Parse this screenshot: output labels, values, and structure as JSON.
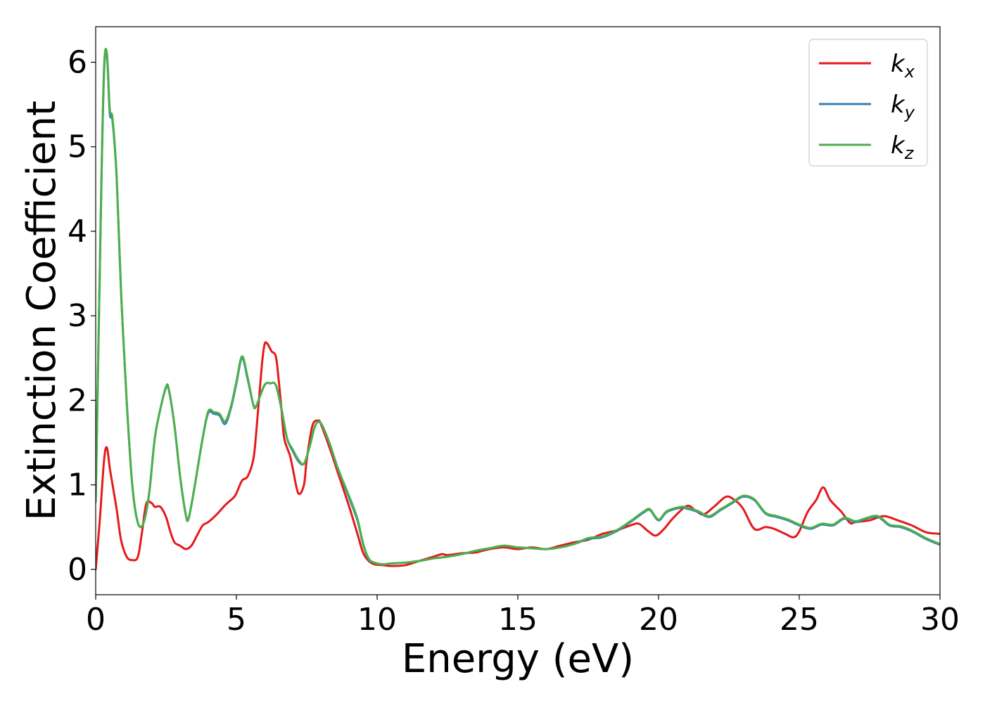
{
  "chart_data": {
    "type": "line",
    "title": "",
    "xlabel": "Energy (eV)",
    "ylabel": "Extinction Coefficient",
    "xlim": [
      0,
      30
    ],
    "ylim": [
      -0.3,
      6.42
    ],
    "xticks": [
      0,
      5,
      10,
      15,
      20,
      25,
      30
    ],
    "yticks": [
      0,
      1,
      2,
      3,
      4,
      5,
      6
    ],
    "grid": false,
    "legend": {
      "placement": "top-right",
      "entries": [
        {
          "base": "k",
          "sub": "x",
          "color": "#e41a1c"
        },
        {
          "base": "k",
          "sub": "y",
          "color": "#377eb8"
        },
        {
          "base": "k",
          "sub": "z",
          "color": "#4daf4a"
        }
      ]
    },
    "series": [
      {
        "name": "kx",
        "color": "#e41a1c",
        "x": [
          0,
          0.15,
          0.3,
          0.4,
          0.5,
          0.6,
          0.75,
          0.9,
          1.1,
          1.3,
          1.5,
          1.65,
          1.8,
          2.0,
          2.1,
          2.3,
          2.5,
          2.65,
          2.8,
          3.0,
          3.2,
          3.4,
          3.6,
          3.8,
          4.0,
          4.3,
          4.6,
          4.9,
          5.0,
          5.2,
          5.4,
          5.6,
          5.7,
          5.9,
          6.0,
          6.1,
          6.25,
          6.4,
          6.5,
          6.6,
          6.7,
          6.9,
          7.0,
          7.2,
          7.4,
          7.5,
          7.7,
          7.9,
          8.0,
          8.3,
          8.6,
          9.0,
          9.3,
          9.5,
          9.7,
          9.9,
          10.2,
          10.5,
          11.0,
          11.5,
          12.0,
          12.3,
          12.5,
          13.0,
          13.5,
          14.0,
          14.5,
          15.0,
          15.5,
          16.0,
          16.5,
          17.0,
          17.5,
          18.0,
          18.5,
          19.0,
          19.3,
          19.6,
          19.9,
          20.2,
          20.5,
          21.0,
          21.3,
          21.6,
          22.0,
          22.4,
          22.7,
          23.0,
          23.4,
          23.8,
          24.1,
          24.5,
          24.8,
          25.0,
          25.3,
          25.6,
          25.85,
          26.1,
          26.5,
          26.8,
          27.0,
          27.5,
          28.0,
          28.5,
          29.0,
          29.5,
          30.0
        ],
        "values": [
          0.0,
          0.6,
          1.3,
          1.44,
          1.2,
          1.0,
          0.7,
          0.35,
          0.15,
          0.11,
          0.15,
          0.45,
          0.78,
          0.78,
          0.74,
          0.74,
          0.62,
          0.45,
          0.32,
          0.28,
          0.24,
          0.28,
          0.4,
          0.52,
          0.56,
          0.65,
          0.76,
          0.85,
          0.9,
          1.05,
          1.1,
          1.3,
          1.6,
          2.4,
          2.66,
          2.67,
          2.58,
          2.52,
          2.25,
          1.9,
          1.55,
          1.35,
          1.2,
          0.9,
          1.0,
          1.3,
          1.7,
          1.76,
          1.72,
          1.45,
          1.15,
          0.75,
          0.42,
          0.2,
          0.1,
          0.06,
          0.05,
          0.04,
          0.05,
          0.1,
          0.15,
          0.18,
          0.17,
          0.19,
          0.2,
          0.24,
          0.26,
          0.24,
          0.26,
          0.24,
          0.28,
          0.32,
          0.35,
          0.42,
          0.46,
          0.52,
          0.54,
          0.46,
          0.4,
          0.48,
          0.6,
          0.75,
          0.7,
          0.65,
          0.75,
          0.86,
          0.82,
          0.72,
          0.48,
          0.5,
          0.48,
          0.42,
          0.38,
          0.45,
          0.68,
          0.82,
          0.97,
          0.82,
          0.68,
          0.55,
          0.56,
          0.58,
          0.63,
          0.58,
          0.52,
          0.44,
          0.42
        ]
      },
      {
        "name": "ky",
        "color": "#377eb8",
        "x": [
          0,
          0.2,
          0.3,
          0.4,
          0.5,
          0.6,
          0.75,
          0.9,
          1.1,
          1.3,
          1.5,
          1.7,
          1.9,
          2.1,
          2.3,
          2.5,
          2.6,
          2.8,
          3.0,
          3.2,
          3.3,
          3.5,
          3.8,
          4.0,
          4.2,
          4.4,
          4.6,
          4.8,
          5.0,
          5.2,
          5.4,
          5.6,
          5.7,
          6.0,
          6.2,
          6.4,
          6.6,
          6.8,
          7.0,
          7.2,
          7.4,
          7.6,
          7.8,
          8.0,
          8.3,
          8.6,
          9.0,
          9.3,
          9.5,
          9.7,
          9.9,
          10.2,
          10.5,
          11.0,
          11.5,
          12.0,
          12.5,
          13.0,
          13.5,
          14.0,
          14.5,
          15.0,
          15.5,
          16.0,
          16.5,
          17.0,
          17.5,
          18.0,
          18.5,
          19.0,
          19.5,
          19.7,
          20.0,
          20.3,
          20.8,
          21.0,
          21.4,
          21.8,
          22.2,
          22.6,
          23.0,
          23.4,
          23.8,
          24.2,
          24.6,
          25.0,
          25.4,
          25.8,
          26.2,
          26.6,
          27.0,
          27.4,
          27.8,
          28.2,
          28.6,
          29.0,
          29.5,
          30.0
        ],
        "values": [
          0.8,
          4.5,
          5.9,
          6.08,
          5.4,
          5.3,
          4.6,
          3.3,
          2.0,
          1.0,
          0.55,
          0.55,
          0.9,
          1.55,
          1.9,
          2.15,
          2.12,
          1.7,
          1.1,
          0.65,
          0.6,
          0.95,
          1.55,
          1.85,
          1.84,
          1.82,
          1.72,
          1.9,
          2.2,
          2.5,
          2.25,
          1.95,
          1.93,
          2.18,
          2.2,
          2.18,
          1.9,
          1.55,
          1.4,
          1.28,
          1.25,
          1.45,
          1.7,
          1.73,
          1.5,
          1.2,
          0.85,
          0.58,
          0.3,
          0.12,
          0.08,
          0.06,
          0.07,
          0.08,
          0.1,
          0.13,
          0.15,
          0.18,
          0.22,
          0.25,
          0.28,
          0.26,
          0.25,
          0.24,
          0.26,
          0.3,
          0.36,
          0.38,
          0.45,
          0.56,
          0.68,
          0.7,
          0.58,
          0.68,
          0.73,
          0.72,
          0.68,
          0.62,
          0.7,
          0.78,
          0.86,
          0.82,
          0.66,
          0.62,
          0.58,
          0.52,
          0.48,
          0.53,
          0.52,
          0.6,
          0.56,
          0.6,
          0.62,
          0.52,
          0.5,
          0.45,
          0.36,
          0.29
        ]
      },
      {
        "name": "kz",
        "color": "#4daf4a",
        "x": [
          0,
          0.2,
          0.3,
          0.4,
          0.5,
          0.6,
          0.75,
          0.9,
          1.1,
          1.3,
          1.5,
          1.7,
          1.9,
          2.1,
          2.3,
          2.5,
          2.6,
          2.8,
          3.0,
          3.2,
          3.3,
          3.5,
          3.8,
          4.0,
          4.2,
          4.4,
          4.6,
          4.8,
          5.0,
          5.2,
          5.4,
          5.6,
          5.7,
          6.0,
          6.2,
          6.4,
          6.6,
          6.8,
          7.0,
          7.2,
          7.4,
          7.6,
          7.8,
          8.0,
          8.3,
          8.6,
          9.0,
          9.3,
          9.5,
          9.7,
          9.9,
          10.2,
          10.5,
          11.0,
          11.5,
          12.0,
          12.5,
          13.0,
          13.5,
          14.0,
          14.5,
          15.0,
          15.5,
          16.0,
          16.5,
          17.0,
          17.5,
          18.0,
          18.5,
          19.0,
          19.5,
          19.7,
          20.0,
          20.3,
          20.8,
          21.0,
          21.4,
          21.8,
          22.2,
          22.6,
          23.0,
          23.4,
          23.8,
          24.2,
          24.6,
          25.0,
          25.4,
          25.8,
          26.2,
          26.6,
          27.0,
          27.4,
          27.8,
          28.2,
          28.6,
          29.0,
          29.5,
          30.0
        ],
        "values": [
          0.8,
          4.55,
          5.95,
          6.1,
          5.45,
          5.33,
          4.62,
          3.3,
          2.0,
          1.0,
          0.55,
          0.55,
          0.9,
          1.55,
          1.9,
          2.16,
          2.13,
          1.7,
          1.1,
          0.65,
          0.6,
          0.95,
          1.55,
          1.87,
          1.86,
          1.84,
          1.75,
          1.92,
          2.22,
          2.52,
          2.27,
          1.95,
          1.93,
          2.18,
          2.2,
          2.18,
          1.9,
          1.55,
          1.42,
          1.3,
          1.25,
          1.45,
          1.7,
          1.73,
          1.5,
          1.2,
          0.87,
          0.6,
          0.31,
          0.13,
          0.08,
          0.06,
          0.07,
          0.08,
          0.1,
          0.13,
          0.15,
          0.18,
          0.22,
          0.25,
          0.28,
          0.26,
          0.25,
          0.24,
          0.26,
          0.3,
          0.37,
          0.39,
          0.46,
          0.57,
          0.69,
          0.71,
          0.59,
          0.69,
          0.74,
          0.73,
          0.69,
          0.63,
          0.71,
          0.79,
          0.87,
          0.83,
          0.67,
          0.63,
          0.59,
          0.53,
          0.49,
          0.54,
          0.53,
          0.61,
          0.57,
          0.61,
          0.63,
          0.53,
          0.51,
          0.46,
          0.37,
          0.3
        ]
      }
    ]
  }
}
